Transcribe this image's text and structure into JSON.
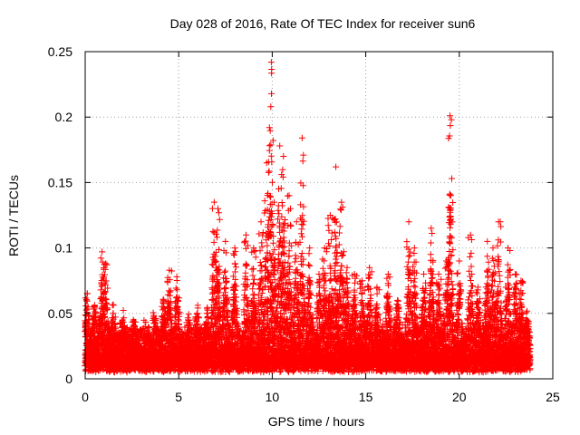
{
  "chart_data": {
    "type": "scatter",
    "title": "Day 028 of 2016, Rate Of TEC Index for receiver sun6",
    "xlabel": "GPS time / hours",
    "ylabel": "ROTI / TECUs",
    "xlim": [
      0,
      25
    ],
    "ylim": [
      0,
      0.25
    ],
    "x_ticks": [
      0,
      5,
      10,
      15,
      20,
      25
    ],
    "y_ticks": [
      0,
      0.05,
      0.1,
      0.15,
      0.2,
      0.25
    ],
    "x_tick_labels": [
      "0",
      "5",
      "10",
      "15",
      "20",
      "25"
    ],
    "y_tick_labels": [
      "0",
      "0.05",
      "0.1",
      "0.15",
      "0.2",
      "0.25"
    ],
    "grid": true,
    "legend": "none",
    "marker": "+",
    "color": "#ff0000",
    "series": [
      {
        "peaks": [
          [
            0.1,
            0.065
          ],
          [
            0.5,
            0.055
          ],
          [
            0.9,
            0.097
          ],
          [
            1.1,
            0.088
          ],
          [
            1.5,
            0.05
          ],
          [
            2.0,
            0.045
          ],
          [
            2.6,
            0.04
          ],
          [
            3.2,
            0.035
          ],
          [
            3.7,
            0.045
          ],
          [
            4.2,
            0.06
          ],
          [
            4.5,
            0.083
          ],
          [
            4.9,
            0.078
          ],
          [
            5.5,
            0.045
          ],
          [
            6.0,
            0.05
          ],
          [
            6.5,
            0.05
          ],
          [
            6.9,
            0.135
          ],
          [
            7.1,
            0.13
          ],
          [
            7.5,
            0.105
          ],
          [
            8.0,
            0.1
          ],
          [
            8.6,
            0.11
          ],
          [
            9.0,
            0.1
          ],
          [
            9.4,
            0.12
          ],
          [
            9.7,
            0.165
          ],
          [
            9.85,
            0.192
          ],
          [
            9.95,
            0.242
          ],
          [
            10.1,
            0.135
          ],
          [
            10.4,
            0.178
          ],
          [
            10.6,
            0.17
          ],
          [
            10.9,
            0.14
          ],
          [
            11.3,
            0.12
          ],
          [
            11.6,
            0.184
          ],
          [
            12.0,
            0.1
          ],
          [
            12.5,
            0.08
          ],
          [
            12.8,
            0.1
          ],
          [
            13.1,
            0.125
          ],
          [
            13.4,
            0.162
          ],
          [
            13.7,
            0.135
          ],
          [
            14.0,
            0.085
          ],
          [
            14.4,
            0.08
          ],
          [
            14.8,
            0.075
          ],
          [
            15.2,
            0.085
          ],
          [
            15.6,
            0.07
          ],
          [
            16.2,
            0.08
          ],
          [
            16.7,
            0.06
          ],
          [
            17.3,
            0.12
          ],
          [
            17.6,
            0.1
          ],
          [
            18.1,
            0.08
          ],
          [
            18.5,
            0.115
          ],
          [
            18.9,
            0.08
          ],
          [
            19.3,
            0.09
          ],
          [
            19.5,
            0.201
          ],
          [
            19.55,
            0.14
          ],
          [
            20.0,
            0.09
          ],
          [
            20.6,
            0.11
          ],
          [
            21.0,
            0.07
          ],
          [
            21.5,
            0.105
          ],
          [
            21.8,
            0.1
          ],
          [
            22.1,
            0.12
          ],
          [
            22.6,
            0.1
          ],
          [
            23.0,
            0.08
          ],
          [
            23.3,
            0.075
          ],
          [
            23.6,
            0.045
          ]
        ],
        "background_band": {
          "time_range": [
            0,
            23.8
          ],
          "typical_range": [
            0.005,
            0.05
          ],
          "sample_interval_hours": 0.01
        }
      }
    ]
  }
}
